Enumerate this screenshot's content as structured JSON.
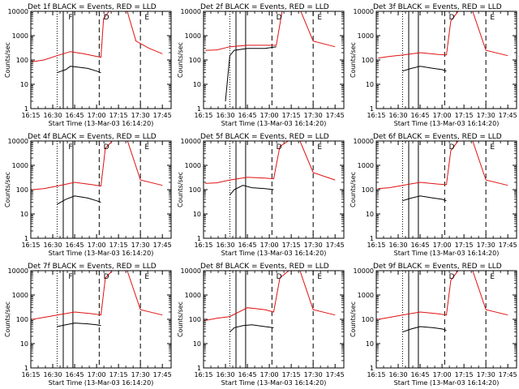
{
  "chart_data": [
    {
      "type": "line",
      "title": "Det 1f BLACK = Events, RED = LLD",
      "xlabel": "Start Time (13-Mar-03 16:14:20)",
      "ylabel": "Counts/sec",
      "x_ticks": [
        "16:15",
        "16:30",
        "16:45",
        "17:00",
        "17:15",
        "17:30",
        "17:45"
      ],
      "y_ticks": [
        "1",
        "10",
        "100",
        "1000",
        "10000"
      ],
      "ylim": [
        1,
        10000
      ],
      "yscale": "log",
      "markers": [
        "F",
        "D",
        "E"
      ],
      "series": [
        {
          "name": "Events",
          "color": "#000000",
          "points": [
            [
              16.55,
              30
            ],
            [
              16.6,
              35
            ],
            [
              16.65,
              40
            ],
            [
              16.7,
              55
            ],
            [
              16.8,
              50
            ],
            [
              16.9,
              45
            ],
            [
              17.0,
              35
            ],
            [
              17.05,
              30
            ]
          ]
        },
        {
          "name": "LLD",
          "color": "#e01010",
          "points": [
            [
              16.27,
              85
            ],
            [
              16.4,
              100
            ],
            [
              16.55,
              150
            ],
            [
              16.7,
              220
            ],
            [
              16.85,
              180
            ],
            [
              17.0,
              140
            ],
            [
              17.05,
              130
            ],
            [
              17.08,
              5000
            ],
            [
              17.15,
              11000
            ],
            [
              17.35,
              10000
            ],
            [
              17.45,
              600
            ],
            [
              17.6,
              300
            ],
            [
              17.75,
              180
            ]
          ]
        }
      ]
    },
    {
      "type": "line",
      "title": "Det 2f BLACK = Events, RED = LLD",
      "xlabel": "Start Time (13-Mar-03 16:14:20)",
      "ylabel": "Counts/sec",
      "x_ticks": [
        "16:15",
        "16:30",
        "16:45",
        "17:00",
        "17:15",
        "17:30",
        "17:45"
      ],
      "y_ticks": [
        "1",
        "10",
        "100",
        "1000",
        "10000"
      ],
      "ylim": [
        1,
        10000
      ],
      "yscale": "log",
      "markers": [
        "D",
        "E"
      ],
      "series": [
        {
          "name": "Events",
          "color": "#000000",
          "points": [
            [
              16.5,
              2
            ],
            [
              16.55,
              150
            ],
            [
              16.6,
              250
            ],
            [
              16.75,
              300
            ],
            [
              16.95,
              300
            ],
            [
              17.08,
              350
            ]
          ]
        },
        {
          "name": "LLD",
          "color": "#e01010",
          "points": [
            [
              16.27,
              250
            ],
            [
              16.4,
              260
            ],
            [
              16.55,
              350
            ],
            [
              16.75,
              400
            ],
            [
              16.95,
              400
            ],
            [
              17.08,
              400
            ],
            [
              17.15,
              12000
            ],
            [
              17.35,
              12000
            ],
            [
              17.5,
              600
            ],
            [
              17.75,
              350
            ]
          ]
        }
      ]
    },
    {
      "type": "line",
      "title": "Det 3f BLACK = Events, RED = LLD",
      "xlabel": "Start Time (13-Mar-03 16:14:20)",
      "ylabel": "Counts/sec",
      "x_ticks": [
        "16:15",
        "16:30",
        "16:45",
        "17:00",
        "17:15",
        "17:30",
        "17:45"
      ],
      "y_ticks": [
        "1",
        "10",
        "100",
        "1000",
        "10000"
      ],
      "ylim": [
        1,
        10000
      ],
      "yscale": "log",
      "markers": [
        "D",
        "E"
      ],
      "series": [
        {
          "name": "Events",
          "color": "#000000",
          "points": [
            [
              16.55,
              35
            ],
            [
              16.65,
              45
            ],
            [
              16.75,
              55
            ],
            [
              16.9,
              45
            ],
            [
              17.0,
              40
            ],
            [
              17.05,
              35
            ]
          ]
        },
        {
          "name": "LLD",
          "color": "#e01010",
          "points": [
            [
              16.27,
              120
            ],
            [
              16.4,
              140
            ],
            [
              16.55,
              160
            ],
            [
              16.75,
              200
            ],
            [
              16.95,
              170
            ],
            [
              17.05,
              160
            ],
            [
              17.1,
              4000
            ],
            [
              17.2,
              12000
            ],
            [
              17.35,
              10000
            ],
            [
              17.5,
              250
            ],
            [
              17.75,
              150
            ]
          ]
        }
      ]
    },
    {
      "type": "line",
      "title": "Det 4f BLACK = Events, RED = LLD",
      "xlabel": "Start Time (13-Mar-03 16:14:20)",
      "ylabel": "Counts/sec",
      "x_ticks": [
        "16:15",
        "16:30",
        "16:45",
        "17:00",
        "17:15",
        "17:30",
        "17:45"
      ],
      "y_ticks": [
        "1",
        "10",
        "100",
        "1000",
        "10000"
      ],
      "ylim": [
        1,
        10000
      ],
      "yscale": "log",
      "markers": [
        "F",
        "D",
        "E"
      ],
      "series": [
        {
          "name": "Events",
          "color": "#000000",
          "points": [
            [
              16.55,
              25
            ],
            [
              16.65,
              40
            ],
            [
              16.75,
              55
            ],
            [
              16.9,
              45
            ],
            [
              17.0,
              35
            ],
            [
              17.05,
              30
            ]
          ]
        },
        {
          "name": "LLD",
          "color": "#e01010",
          "points": [
            [
              16.27,
              100
            ],
            [
              16.4,
              110
            ],
            [
              16.55,
              140
            ],
            [
              16.75,
              200
            ],
            [
              16.95,
              160
            ],
            [
              17.05,
              140
            ],
            [
              17.1,
              5000
            ],
            [
              17.2,
              12000
            ],
            [
              17.35,
              11000
            ],
            [
              17.5,
              250
            ],
            [
              17.75,
              150
            ]
          ]
        }
      ]
    },
    {
      "type": "line",
      "title": "Det 5f BLACK = Events, RED = LLD",
      "xlabel": "Start Time (13-Mar-03 16:14:20)",
      "ylabel": "Counts/sec",
      "x_ticks": [
        "16:15",
        "16:30",
        "16:45",
        "17:00",
        "17:15",
        "17:30",
        "17:45"
      ],
      "y_ticks": [
        "1",
        "10",
        "100",
        "1000",
        "10000"
      ],
      "ylim": [
        1,
        10000
      ],
      "yscale": "log",
      "markers": [
        "D",
        "E"
      ],
      "series": [
        {
          "name": "Events",
          "color": "#000000",
          "points": [
            [
              16.55,
              60
            ],
            [
              16.6,
              100
            ],
            [
              16.7,
              150
            ],
            [
              16.8,
              120
            ],
            [
              16.95,
              110
            ],
            [
              17.05,
              100
            ]
          ]
        },
        {
          "name": "LLD",
          "color": "#e01010",
          "points": [
            [
              16.27,
              180
            ],
            [
              16.4,
              190
            ],
            [
              16.55,
              250
            ],
            [
              16.75,
              320
            ],
            [
              16.95,
              300
            ],
            [
              17.05,
              280
            ],
            [
              17.12,
              6000
            ],
            [
              17.25,
              12000
            ],
            [
              17.35,
              10000
            ],
            [
              17.5,
              500
            ],
            [
              17.75,
              250
            ]
          ]
        }
      ]
    },
    {
      "type": "line",
      "title": "Det 6f BLACK = Events, RED = LLD",
      "xlabel": "Start Time (13-Mar-03 16:14:20)",
      "ylabel": "Counts/sec",
      "x_ticks": [
        "16:15",
        "16:30",
        "16:45",
        "17:00",
        "17:15",
        "17:30",
        "17:45"
      ],
      "y_ticks": [
        "1",
        "10",
        "100",
        "1000",
        "10000"
      ],
      "ylim": [
        1,
        10000
      ],
      "yscale": "log",
      "markers": [
        "D",
        "E"
      ],
      "series": [
        {
          "name": "Events",
          "color": "#000000",
          "points": [
            [
              16.55,
              35
            ],
            [
              16.65,
              45
            ],
            [
              16.75,
              55
            ],
            [
              16.9,
              45
            ],
            [
              17.0,
              40
            ],
            [
              17.05,
              35
            ]
          ]
        },
        {
          "name": "LLD",
          "color": "#e01010",
          "points": [
            [
              16.27,
              110
            ],
            [
              16.4,
              120
            ],
            [
              16.55,
              150
            ],
            [
              16.75,
              200
            ],
            [
              16.95,
              170
            ],
            [
              17.05,
              160
            ],
            [
              17.1,
              4000
            ],
            [
              17.2,
              12000
            ],
            [
              17.35,
              10000
            ],
            [
              17.5,
              250
            ],
            [
              17.75,
              150
            ]
          ]
        }
      ]
    },
    {
      "type": "line",
      "title": "Det 7f BLACK = Events, RED = LLD",
      "xlabel": "Start Time (13-Mar-03 16:14:20)",
      "ylabel": "Counts/sec",
      "x_ticks": [
        "16:15",
        "16:30",
        "16:45",
        "17:00",
        "17:15",
        "17:30",
        "17:45"
      ],
      "y_ticks": [
        "1",
        "10",
        "100",
        "1000",
        "10000"
      ],
      "ylim": [
        1,
        10000
      ],
      "yscale": "log",
      "markers": [
        "F",
        "D",
        "E"
      ],
      "series": [
        {
          "name": "Events",
          "color": "#000000",
          "points": [
            [
              16.55,
              50
            ],
            [
              16.65,
              60
            ],
            [
              16.75,
              70
            ],
            [
              16.9,
              65
            ],
            [
              17.0,
              60
            ],
            [
              17.05,
              55
            ]
          ]
        },
        {
          "name": "LLD",
          "color": "#e01010",
          "points": [
            [
              16.27,
              100
            ],
            [
              16.4,
              120
            ],
            [
              16.55,
              150
            ],
            [
              16.75,
              200
            ],
            [
              16.95,
              170
            ],
            [
              17.05,
              150
            ],
            [
              17.1,
              5000
            ],
            [
              17.2,
              12000
            ],
            [
              17.35,
              10000
            ],
            [
              17.5,
              250
            ],
            [
              17.75,
              150
            ]
          ]
        }
      ]
    },
    {
      "type": "line",
      "title": "Det 8f BLACK = Events, RED = LLD",
      "xlabel": "Start Time (13-Mar-03 16:14:20)",
      "ylabel": "Counts/sec",
      "x_ticks": [
        "16:15",
        "16:30",
        "16:45",
        "17:00",
        "17:15",
        "17:30",
        "17:45"
      ],
      "y_ticks": [
        "1",
        "10",
        "100",
        "1000",
        "10000"
      ],
      "ylim": [
        1,
        10000
      ],
      "yscale": "log",
      "markers": [
        "D",
        "E"
      ],
      "series": [
        {
          "name": "Events",
          "color": "#000000",
          "points": [
            [
              16.55,
              30
            ],
            [
              16.6,
              45
            ],
            [
              16.7,
              55
            ],
            [
              16.8,
              60
            ],
            [
              16.95,
              50
            ],
            [
              17.05,
              45
            ]
          ]
        },
        {
          "name": "LLD",
          "color": "#e01010",
          "points": [
            [
              16.27,
              90
            ],
            [
              16.4,
              110
            ],
            [
              16.55,
              130
            ],
            [
              16.75,
              300
            ],
            [
              16.95,
              250
            ],
            [
              17.05,
              200
            ],
            [
              17.12,
              5000
            ],
            [
              17.25,
              12000
            ],
            [
              17.35,
              10000
            ],
            [
              17.5,
              250
            ],
            [
              17.75,
              150
            ]
          ]
        }
      ]
    },
    {
      "type": "line",
      "title": "Det 9f BLACK = Events, RED = LLD",
      "xlabel": "Start Time (13-Mar-03 16:14:20)",
      "ylabel": "Counts/sec",
      "x_ticks": [
        "16:15",
        "16:30",
        "16:45",
        "17:00",
        "17:15",
        "17:30",
        "17:45"
      ],
      "y_ticks": [
        "1",
        "10",
        "100",
        "1000",
        "10000"
      ],
      "ylim": [
        1,
        10000
      ],
      "yscale": "log",
      "markers": [
        "D",
        "E"
      ],
      "series": [
        {
          "name": "Events",
          "color": "#000000",
          "points": [
            [
              16.55,
              30
            ],
            [
              16.65,
              40
            ],
            [
              16.75,
              50
            ],
            [
              16.9,
              45
            ],
            [
              17.0,
              40
            ],
            [
              17.05,
              35
            ]
          ]
        },
        {
          "name": "LLD",
          "color": "#e01010",
          "points": [
            [
              16.27,
              100
            ],
            [
              16.4,
              120
            ],
            [
              16.55,
              150
            ],
            [
              16.75,
              200
            ],
            [
              16.95,
              170
            ],
            [
              17.05,
              150
            ],
            [
              17.1,
              4000
            ],
            [
              17.2,
              12000
            ],
            [
              17.35,
              10000
            ],
            [
              17.5,
              250
            ],
            [
              17.75,
              150
            ]
          ]
        }
      ]
    }
  ]
}
